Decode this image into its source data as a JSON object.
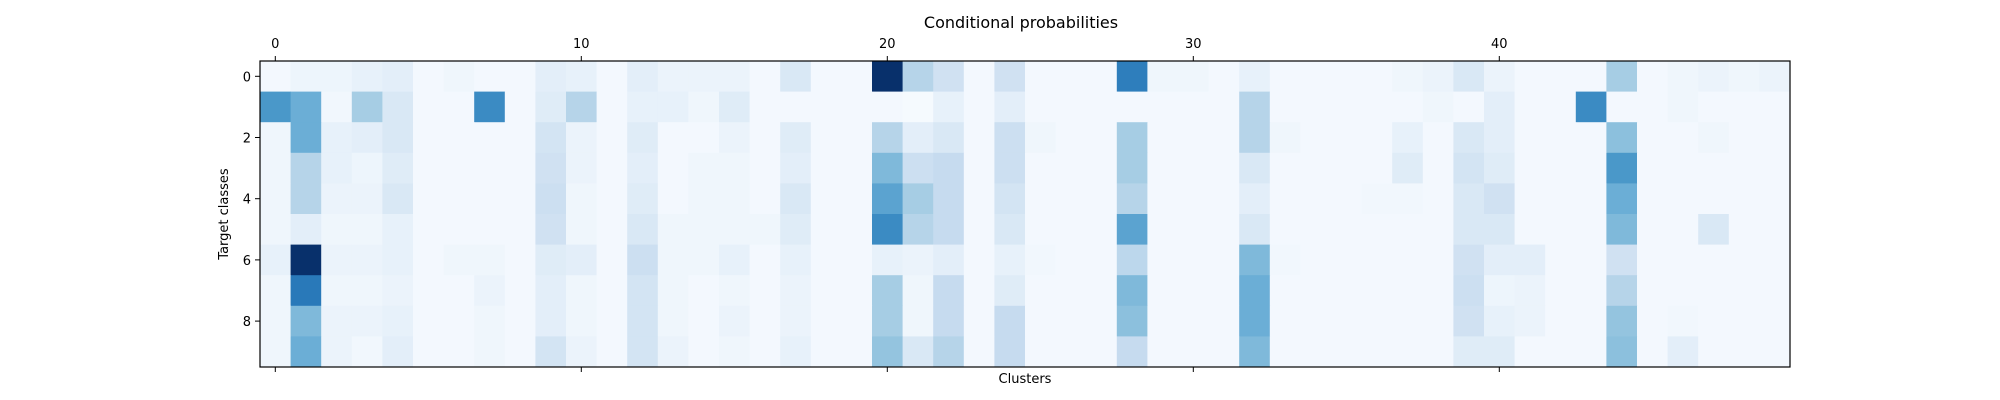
{
  "chart_data": {
    "type": "heatmap",
    "title": "Conditional probabilities",
    "xlabel": "Clusters",
    "ylabel": "Target classes",
    "x_ticks": [
      0,
      10,
      20,
      30,
      40
    ],
    "y_ticks": [
      0,
      2,
      4,
      6,
      8
    ],
    "x_range": [
      0,
      49
    ],
    "y_range": [
      0,
      9
    ],
    "x_axis_position": "top",
    "colormap": "Blues",
    "colormap_stops": [
      "#f7fbff",
      "#deebf7",
      "#c6dbef",
      "#9ecae1",
      "#6baed6",
      "#4292c6",
      "#2171b5",
      "#08519c",
      "#08306b"
    ],
    "grid": false,
    "values": [
      [
        0.02,
        0.05,
        0.05,
        0.08,
        0.1,
        0.02,
        0.04,
        0.02,
        0.02,
        0.1,
        0.08,
        0.02,
        0.1,
        0.06,
        0.06,
        0.06,
        0.02,
        0.15,
        0.02,
        0.02,
        1.0,
        0.3,
        0.2,
        0.02,
        0.2,
        0.02,
        0.02,
        0.02,
        0.7,
        0.04,
        0.04,
        0.02,
        0.08,
        0.02,
        0.02,
        0.02,
        0.02,
        0.04,
        0.06,
        0.15,
        0.06,
        0.02,
        0.02,
        0.02,
        0.35,
        0.02,
        0.04,
        0.06,
        0.04,
        0.06
      ],
      [
        0.6,
        0.5,
        0.03,
        0.35,
        0.15,
        0.02,
        0.02,
        0.65,
        0.02,
        0.12,
        0.3,
        0.02,
        0.08,
        0.08,
        0.04,
        0.12,
        0.02,
        0.02,
        0.02,
        0.02,
        0.02,
        0.01,
        0.08,
        0.02,
        0.1,
        0.02,
        0.02,
        0.02,
        0.02,
        0.02,
        0.02,
        0.02,
        0.3,
        0.02,
        0.02,
        0.02,
        0.02,
        0.02,
        0.04,
        0.02,
        0.1,
        0.02,
        0.02,
        0.65,
        0.02,
        0.02,
        0.04,
        0.02,
        0.02,
        0.02
      ],
      [
        0.04,
        0.5,
        0.08,
        0.1,
        0.15,
        0.02,
        0.02,
        0.02,
        0.02,
        0.18,
        0.06,
        0.02,
        0.12,
        0.02,
        0.02,
        0.06,
        0.02,
        0.12,
        0.02,
        0.02,
        0.3,
        0.1,
        0.15,
        0.02,
        0.22,
        0.04,
        0.02,
        0.02,
        0.35,
        0.02,
        0.02,
        0.02,
        0.3,
        0.04,
        0.02,
        0.02,
        0.02,
        0.08,
        0.02,
        0.15,
        0.1,
        0.02,
        0.02,
        0.02,
        0.42,
        0.02,
        0.02,
        0.04,
        0.02,
        0.02
      ],
      [
        0.04,
        0.3,
        0.08,
        0.05,
        0.12,
        0.02,
        0.02,
        0.02,
        0.02,
        0.2,
        0.06,
        0.02,
        0.1,
        0.02,
        0.04,
        0.04,
        0.02,
        0.1,
        0.02,
        0.02,
        0.45,
        0.22,
        0.25,
        0.02,
        0.22,
        0.02,
        0.02,
        0.02,
        0.35,
        0.02,
        0.02,
        0.02,
        0.15,
        0.02,
        0.02,
        0.02,
        0.02,
        0.12,
        0.02,
        0.18,
        0.12,
        0.02,
        0.02,
        0.02,
        0.6,
        0.02,
        0.02,
        0.02,
        0.02,
        0.02
      ],
      [
        0.04,
        0.3,
        0.06,
        0.06,
        0.15,
        0.02,
        0.02,
        0.02,
        0.02,
        0.22,
        0.04,
        0.02,
        0.12,
        0.02,
        0.04,
        0.04,
        0.02,
        0.15,
        0.02,
        0.02,
        0.55,
        0.35,
        0.25,
        0.02,
        0.18,
        0.02,
        0.02,
        0.02,
        0.3,
        0.02,
        0.02,
        0.02,
        0.1,
        0.02,
        0.02,
        0.02,
        0.03,
        0.03,
        0.02,
        0.15,
        0.2,
        0.02,
        0.02,
        0.02,
        0.5,
        0.02,
        0.02,
        0.02,
        0.02,
        0.02
      ],
      [
        0.04,
        0.1,
        0.04,
        0.04,
        0.08,
        0.02,
        0.02,
        0.02,
        0.02,
        0.2,
        0.04,
        0.02,
        0.15,
        0.04,
        0.04,
        0.04,
        0.04,
        0.12,
        0.02,
        0.02,
        0.65,
        0.3,
        0.25,
        0.02,
        0.15,
        0.02,
        0.02,
        0.02,
        0.55,
        0.02,
        0.02,
        0.02,
        0.15,
        0.02,
        0.02,
        0.02,
        0.02,
        0.02,
        0.02,
        0.15,
        0.15,
        0.02,
        0.02,
        0.02,
        0.45,
        0.02,
        0.02,
        0.15,
        0.02,
        0.02
      ],
      [
        0.08,
        1.0,
        0.06,
        0.06,
        0.08,
        0.02,
        0.04,
        0.04,
        0.02,
        0.12,
        0.1,
        0.02,
        0.22,
        0.04,
        0.04,
        0.08,
        0.02,
        0.08,
        0.02,
        0.02,
        0.08,
        0.06,
        0.1,
        0.02,
        0.08,
        0.03,
        0.02,
        0.02,
        0.28,
        0.02,
        0.02,
        0.02,
        0.45,
        0.03,
        0.02,
        0.02,
        0.02,
        0.02,
        0.02,
        0.2,
        0.1,
        0.1,
        0.02,
        0.02,
        0.2,
        0.02,
        0.02,
        0.02,
        0.02,
        0.02
      ],
      [
        0.04,
        0.72,
        0.04,
        0.04,
        0.06,
        0.02,
        0.02,
        0.06,
        0.02,
        0.1,
        0.04,
        0.02,
        0.18,
        0.04,
        0.02,
        0.04,
        0.02,
        0.06,
        0.02,
        0.02,
        0.35,
        0.04,
        0.25,
        0.02,
        0.12,
        0.02,
        0.02,
        0.02,
        0.45,
        0.02,
        0.02,
        0.02,
        0.5,
        0.02,
        0.02,
        0.02,
        0.02,
        0.02,
        0.02,
        0.22,
        0.05,
        0.06,
        0.02,
        0.02,
        0.3,
        0.02,
        0.02,
        0.02,
        0.02,
        0.02
      ],
      [
        0.04,
        0.45,
        0.06,
        0.06,
        0.08,
        0.02,
        0.02,
        0.04,
        0.02,
        0.1,
        0.04,
        0.02,
        0.18,
        0.04,
        0.02,
        0.06,
        0.02,
        0.06,
        0.02,
        0.02,
        0.35,
        0.04,
        0.25,
        0.02,
        0.25,
        0.02,
        0.02,
        0.02,
        0.42,
        0.02,
        0.02,
        0.02,
        0.5,
        0.02,
        0.02,
        0.02,
        0.02,
        0.02,
        0.02,
        0.2,
        0.08,
        0.06,
        0.02,
        0.02,
        0.4,
        0.02,
        0.03,
        0.02,
        0.02,
        0.02
      ],
      [
        0.04,
        0.5,
        0.06,
        0.03,
        0.1,
        0.02,
        0.02,
        0.04,
        0.02,
        0.18,
        0.06,
        0.02,
        0.18,
        0.06,
        0.02,
        0.04,
        0.02,
        0.08,
        0.02,
        0.02,
        0.4,
        0.15,
        0.3,
        0.02,
        0.25,
        0.02,
        0.02,
        0.02,
        0.25,
        0.02,
        0.02,
        0.02,
        0.45,
        0.02,
        0.02,
        0.02,
        0.02,
        0.02,
        0.02,
        0.12,
        0.12,
        0.02,
        0.02,
        0.02,
        0.42,
        0.02,
        0.1,
        0.02,
        0.02,
        0.02
      ]
    ]
  }
}
